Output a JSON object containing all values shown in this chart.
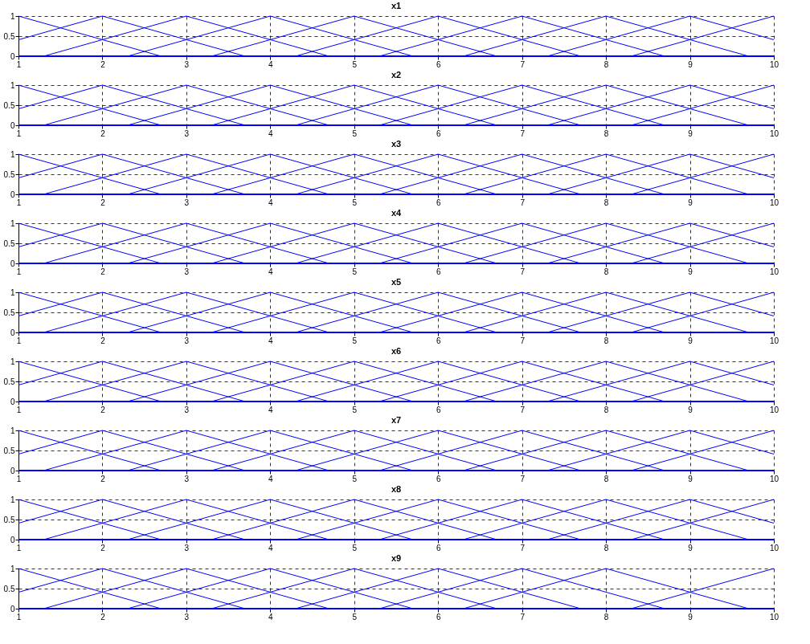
{
  "chart_data": [
    {
      "type": "line",
      "title": "x1",
      "xlim": [
        1,
        10
      ],
      "ylim": [
        0,
        1
      ],
      "xticks": [
        1,
        2,
        3,
        4,
        5,
        6,
        7,
        8,
        9,
        10
      ],
      "yticks": [
        0,
        0.5,
        1
      ],
      "grid": true,
      "legend": false,
      "series": [
        {
          "color": "#0000ff",
          "x": [
            1,
            2.7,
            10
          ],
          "values": [
            1,
            0,
            0
          ]
        },
        {
          "color": "#0000ff",
          "x": [
            1,
            2,
            3.7,
            10
          ],
          "values": [
            0.41,
            1,
            0,
            0
          ]
        },
        {
          "color": "#0000ff",
          "x": [
            1,
            1.3,
            3,
            4.7,
            10
          ],
          "values": [
            0,
            0,
            1,
            0,
            0
          ]
        },
        {
          "color": "#0000ff",
          "x": [
            1,
            2.3,
            4,
            5.7,
            10
          ],
          "values": [
            0,
            0,
            1,
            0,
            0
          ]
        },
        {
          "color": "#0000ff",
          "x": [
            1,
            3.3,
            5,
            6.7,
            10
          ],
          "values": [
            0,
            0,
            1,
            0,
            0
          ]
        },
        {
          "color": "#0000ff",
          "x": [
            1,
            4.3,
            6,
            7.7,
            10
          ],
          "values": [
            0,
            0,
            1,
            0,
            0
          ]
        },
        {
          "color": "#0000ff",
          "x": [
            1,
            5.3,
            7,
            8.7,
            10
          ],
          "values": [
            0,
            0,
            1,
            0,
            0
          ]
        },
        {
          "color": "#0000ff",
          "x": [
            1,
            6.3,
            8,
            9.7,
            10
          ],
          "values": [
            0,
            0,
            1,
            0,
            0
          ]
        },
        {
          "color": "#0000ff",
          "x": [
            1,
            7.3,
            9,
            10
          ],
          "values": [
            0,
            0,
            1,
            0.41
          ]
        },
        {
          "color": "#0000ff",
          "x": [
            1,
            8.3,
            10
          ],
          "values": [
            0,
            0,
            1
          ]
        }
      ]
    },
    {
      "type": "line",
      "title": "x2",
      "xlim": [
        1,
        10
      ],
      "ylim": [
        0,
        1
      ],
      "xticks": [
        1,
        2,
        3,
        4,
        5,
        6,
        7,
        8,
        9,
        10
      ],
      "yticks": [
        0,
        0.5,
        1
      ],
      "grid": true,
      "legend": false,
      "series": [
        {
          "color": "#0000ff",
          "x": [
            1,
            2.7,
            10
          ],
          "values": [
            1,
            0,
            0
          ]
        },
        {
          "color": "#0000ff",
          "x": [
            1,
            2,
            3.7,
            10
          ],
          "values": [
            0.41,
            1,
            0,
            0
          ]
        },
        {
          "color": "#0000ff",
          "x": [
            1,
            1.3,
            3,
            4.7,
            10
          ],
          "values": [
            0,
            0,
            1,
            0,
            0
          ]
        },
        {
          "color": "#0000ff",
          "x": [
            1,
            2.3,
            4,
            5.7,
            10
          ],
          "values": [
            0,
            0,
            1,
            0,
            0
          ]
        },
        {
          "color": "#0000ff",
          "x": [
            1,
            3.3,
            5,
            6.7,
            10
          ],
          "values": [
            0,
            0,
            1,
            0,
            0
          ]
        },
        {
          "color": "#0000ff",
          "x": [
            1,
            4.3,
            6,
            7.7,
            10
          ],
          "values": [
            0,
            0,
            1,
            0,
            0
          ]
        },
        {
          "color": "#0000ff",
          "x": [
            1,
            5.3,
            7,
            8.7,
            10
          ],
          "values": [
            0,
            0,
            1,
            0,
            0
          ]
        },
        {
          "color": "#0000ff",
          "x": [
            1,
            6.3,
            8,
            9.7,
            10
          ],
          "values": [
            0,
            0,
            1,
            0,
            0
          ]
        },
        {
          "color": "#0000ff",
          "x": [
            1,
            7.3,
            9,
            10
          ],
          "values": [
            0,
            0,
            1,
            0.41
          ]
        },
        {
          "color": "#0000ff",
          "x": [
            1,
            8.3,
            10
          ],
          "values": [
            0,
            0,
            1
          ]
        }
      ]
    },
    {
      "type": "line",
      "title": "x3",
      "xlim": [
        1,
        10
      ],
      "ylim": [
        0,
        1
      ],
      "xticks": [
        1,
        2,
        3,
        4,
        5,
        6,
        7,
        8,
        9,
        10
      ],
      "yticks": [
        0,
        0.5,
        1
      ],
      "grid": true,
      "legend": false,
      "series": [
        {
          "color": "#0000ff",
          "x": [
            1,
            2.7,
            10
          ],
          "values": [
            1,
            0,
            0
          ]
        },
        {
          "color": "#0000ff",
          "x": [
            1,
            2,
            3.7,
            10
          ],
          "values": [
            0.41,
            1,
            0,
            0
          ]
        },
        {
          "color": "#0000ff",
          "x": [
            1,
            1.3,
            3,
            4.7,
            10
          ],
          "values": [
            0,
            0,
            1,
            0,
            0
          ]
        },
        {
          "color": "#0000ff",
          "x": [
            1,
            2.3,
            4,
            5.7,
            10
          ],
          "values": [
            0,
            0,
            1,
            0,
            0
          ]
        },
        {
          "color": "#0000ff",
          "x": [
            1,
            3.3,
            5,
            6.7,
            10
          ],
          "values": [
            0,
            0,
            1,
            0,
            0
          ]
        },
        {
          "color": "#0000ff",
          "x": [
            1,
            4.3,
            6,
            7.7,
            10
          ],
          "values": [
            0,
            0,
            1,
            0,
            0
          ]
        },
        {
          "color": "#0000ff",
          "x": [
            1,
            5.3,
            7,
            8.7,
            10
          ],
          "values": [
            0,
            0,
            1,
            0,
            0
          ]
        },
        {
          "color": "#0000ff",
          "x": [
            1,
            6.3,
            8,
            9.7,
            10
          ],
          "values": [
            0,
            0,
            1,
            0,
            0
          ]
        },
        {
          "color": "#0000ff",
          "x": [
            1,
            7.3,
            9,
            10
          ],
          "values": [
            0,
            0,
            1,
            0.41
          ]
        },
        {
          "color": "#0000ff",
          "x": [
            1,
            8.3,
            10
          ],
          "values": [
            0,
            0,
            1
          ]
        }
      ]
    },
    {
      "type": "line",
      "title": "x4",
      "xlim": [
        1,
        10
      ],
      "ylim": [
        0,
        1
      ],
      "xticks": [
        1,
        2,
        3,
        4,
        5,
        6,
        7,
        8,
        9,
        10
      ],
      "yticks": [
        0,
        0.5,
        1
      ],
      "grid": true,
      "legend": false,
      "series": [
        {
          "color": "#0000ff",
          "x": [
            1,
            2.7,
            10
          ],
          "values": [
            1,
            0,
            0
          ]
        },
        {
          "color": "#0000ff",
          "x": [
            1,
            2,
            3.7,
            10
          ],
          "values": [
            0.41,
            1,
            0,
            0
          ]
        },
        {
          "color": "#0000ff",
          "x": [
            1,
            1.3,
            3,
            4.7,
            10
          ],
          "values": [
            0,
            0,
            1,
            0,
            0
          ]
        },
        {
          "color": "#0000ff",
          "x": [
            1,
            2.3,
            4,
            5.7,
            10
          ],
          "values": [
            0,
            0,
            1,
            0,
            0
          ]
        },
        {
          "color": "#0000ff",
          "x": [
            1,
            3.3,
            5,
            6.7,
            10
          ],
          "values": [
            0,
            0,
            1,
            0,
            0
          ]
        },
        {
          "color": "#0000ff",
          "x": [
            1,
            4.3,
            6,
            7.7,
            10
          ],
          "values": [
            0,
            0,
            1,
            0,
            0
          ]
        },
        {
          "color": "#0000ff",
          "x": [
            1,
            5.3,
            7,
            8.7,
            10
          ],
          "values": [
            0,
            0,
            1,
            0,
            0
          ]
        },
        {
          "color": "#0000ff",
          "x": [
            1,
            6.3,
            8,
            9.7,
            10
          ],
          "values": [
            0,
            0,
            1,
            0,
            0
          ]
        },
        {
          "color": "#0000ff",
          "x": [
            1,
            7.3,
            9,
            10
          ],
          "values": [
            0,
            0,
            1,
            0.41
          ]
        },
        {
          "color": "#0000ff",
          "x": [
            1,
            8.3,
            10
          ],
          "values": [
            0,
            0,
            1
          ]
        }
      ]
    },
    {
      "type": "line",
      "title": "x5",
      "xlim": [
        1,
        10
      ],
      "ylim": [
        0,
        1
      ],
      "xticks": [
        1,
        2,
        3,
        4,
        5,
        6,
        7,
        8,
        9,
        10
      ],
      "yticks": [
        0,
        0.5,
        1
      ],
      "grid": true,
      "legend": false,
      "series": [
        {
          "color": "#0000ff",
          "x": [
            1,
            2.7,
            10
          ],
          "values": [
            1,
            0,
            0
          ]
        },
        {
          "color": "#0000ff",
          "x": [
            1,
            2,
            3.7,
            10
          ],
          "values": [
            0.41,
            1,
            0,
            0
          ]
        },
        {
          "color": "#0000ff",
          "x": [
            1,
            1.3,
            3,
            4.7,
            10
          ],
          "values": [
            0,
            0,
            1,
            0,
            0
          ]
        },
        {
          "color": "#0000ff",
          "x": [
            1,
            2.3,
            4,
            5.7,
            10
          ],
          "values": [
            0,
            0,
            1,
            0,
            0
          ]
        },
        {
          "color": "#0000ff",
          "x": [
            1,
            3.3,
            5,
            6.7,
            10
          ],
          "values": [
            0,
            0,
            1,
            0,
            0
          ]
        },
        {
          "color": "#0000ff",
          "x": [
            1,
            4.3,
            6,
            7.7,
            10
          ],
          "values": [
            0,
            0,
            1,
            0,
            0
          ]
        },
        {
          "color": "#0000ff",
          "x": [
            1,
            5.3,
            7,
            8.7,
            10
          ],
          "values": [
            0,
            0,
            1,
            0,
            0
          ]
        },
        {
          "color": "#0000ff",
          "x": [
            1,
            6.3,
            8,
            9.7,
            10
          ],
          "values": [
            0,
            0,
            1,
            0,
            0
          ]
        },
        {
          "color": "#0000ff",
          "x": [
            1,
            7.3,
            9,
            10
          ],
          "values": [
            0,
            0,
            1,
            0.41
          ]
        },
        {
          "color": "#0000ff",
          "x": [
            1,
            8.3,
            10
          ],
          "values": [
            0,
            0,
            1
          ]
        }
      ]
    },
    {
      "type": "line",
      "title": "x6",
      "xlim": [
        1,
        10
      ],
      "ylim": [
        0,
        1
      ],
      "xticks": [
        1,
        2,
        3,
        4,
        5,
        6,
        7,
        8,
        9,
        10
      ],
      "yticks": [
        0,
        0.5,
        1
      ],
      "grid": true,
      "legend": false,
      "series": [
        {
          "color": "#0000ff",
          "x": [
            1,
            2.7,
            10
          ],
          "values": [
            1,
            0,
            0
          ]
        },
        {
          "color": "#0000ff",
          "x": [
            1,
            2,
            3.7,
            10
          ],
          "values": [
            0.41,
            1,
            0,
            0
          ]
        },
        {
          "color": "#0000ff",
          "x": [
            1,
            1.3,
            3,
            4.7,
            10
          ],
          "values": [
            0,
            0,
            1,
            0,
            0
          ]
        },
        {
          "color": "#0000ff",
          "x": [
            1,
            2.3,
            4,
            5.7,
            10
          ],
          "values": [
            0,
            0,
            1,
            0,
            0
          ]
        },
        {
          "color": "#0000ff",
          "x": [
            1,
            3.3,
            5,
            6.7,
            10
          ],
          "values": [
            0,
            0,
            1,
            0,
            0
          ]
        },
        {
          "color": "#0000ff",
          "x": [
            1,
            4.3,
            6,
            7.7,
            10
          ],
          "values": [
            0,
            0,
            1,
            0,
            0
          ]
        },
        {
          "color": "#0000ff",
          "x": [
            1,
            5.3,
            7,
            8.7,
            10
          ],
          "values": [
            0,
            0,
            1,
            0,
            0
          ]
        },
        {
          "color": "#0000ff",
          "x": [
            1,
            6.3,
            8,
            9.7,
            10
          ],
          "values": [
            0,
            0,
            1,
            0,
            0
          ]
        },
        {
          "color": "#0000ff",
          "x": [
            1,
            7.3,
            9,
            10
          ],
          "values": [
            0,
            0,
            1,
            0.41
          ]
        },
        {
          "color": "#0000ff",
          "x": [
            1,
            8.3,
            10
          ],
          "values": [
            0,
            0,
            1
          ]
        }
      ]
    },
    {
      "type": "line",
      "title": "x7",
      "xlim": [
        1,
        10
      ],
      "ylim": [
        0,
        1
      ],
      "xticks": [
        1,
        2,
        3,
        4,
        5,
        6,
        7,
        8,
        9,
        10
      ],
      "yticks": [
        0,
        0.5,
        1
      ],
      "grid": true,
      "legend": false,
      "series": [
        {
          "color": "#0000ff",
          "x": [
            1,
            2.7,
            10
          ],
          "values": [
            1,
            0,
            0
          ]
        },
        {
          "color": "#0000ff",
          "x": [
            1,
            2,
            3.7,
            10
          ],
          "values": [
            0.41,
            1,
            0,
            0
          ]
        },
        {
          "color": "#0000ff",
          "x": [
            1,
            1.3,
            3,
            4.7,
            10
          ],
          "values": [
            0,
            0,
            1,
            0,
            0
          ]
        },
        {
          "color": "#0000ff",
          "x": [
            1,
            2.3,
            4,
            5.7,
            10
          ],
          "values": [
            0,
            0,
            1,
            0,
            0
          ]
        },
        {
          "color": "#0000ff",
          "x": [
            1,
            3.3,
            5,
            6.7,
            10
          ],
          "values": [
            0,
            0,
            1,
            0,
            0
          ]
        },
        {
          "color": "#0000ff",
          "x": [
            1,
            4.3,
            6,
            7.7,
            10
          ],
          "values": [
            0,
            0,
            1,
            0,
            0
          ]
        },
        {
          "color": "#0000ff",
          "x": [
            1,
            5.3,
            7,
            8.7,
            10
          ],
          "values": [
            0,
            0,
            1,
            0,
            0
          ]
        },
        {
          "color": "#0000ff",
          "x": [
            1,
            6.3,
            8,
            9.7,
            10
          ],
          "values": [
            0,
            0,
            1,
            0,
            0
          ]
        },
        {
          "color": "#0000ff",
          "x": [
            1,
            7.3,
            9,
            10
          ],
          "values": [
            0,
            0,
            1,
            0.41
          ]
        },
        {
          "color": "#0000ff",
          "x": [
            1,
            8.3,
            10
          ],
          "values": [
            0,
            0,
            1
          ]
        }
      ]
    },
    {
      "type": "line",
      "title": "x8",
      "xlim": [
        1,
        10
      ],
      "ylim": [
        0,
        1
      ],
      "xticks": [
        1,
        2,
        3,
        4,
        5,
        6,
        7,
        8,
        9,
        10
      ],
      "yticks": [
        0,
        0.5,
        1
      ],
      "grid": true,
      "legend": false,
      "series": [
        {
          "color": "#0000ff",
          "x": [
            1,
            2.7,
            10
          ],
          "values": [
            1,
            0,
            0
          ]
        },
        {
          "color": "#0000ff",
          "x": [
            1,
            2,
            3.7,
            10
          ],
          "values": [
            0.41,
            1,
            0,
            0
          ]
        },
        {
          "color": "#0000ff",
          "x": [
            1,
            1.3,
            3,
            4.7,
            10
          ],
          "values": [
            0,
            0,
            1,
            0,
            0
          ]
        },
        {
          "color": "#0000ff",
          "x": [
            1,
            2.3,
            4,
            5.7,
            10
          ],
          "values": [
            0,
            0,
            1,
            0,
            0
          ]
        },
        {
          "color": "#0000ff",
          "x": [
            1,
            3.3,
            5,
            6.7,
            10
          ],
          "values": [
            0,
            0,
            1,
            0,
            0
          ]
        },
        {
          "color": "#0000ff",
          "x": [
            1,
            4.3,
            6,
            7.7,
            10
          ],
          "values": [
            0,
            0,
            1,
            0,
            0
          ]
        },
        {
          "color": "#0000ff",
          "x": [
            1,
            5.3,
            7,
            8.7,
            10
          ],
          "values": [
            0,
            0,
            1,
            0,
            0
          ]
        },
        {
          "color": "#0000ff",
          "x": [
            1,
            6.3,
            8,
            9.7,
            10
          ],
          "values": [
            0,
            0,
            1,
            0,
            0
          ]
        },
        {
          "color": "#0000ff",
          "x": [
            1,
            7.3,
            9,
            10
          ],
          "values": [
            0,
            0,
            1,
            0.41
          ]
        },
        {
          "color": "#0000ff",
          "x": [
            1,
            8.3,
            10
          ],
          "values": [
            0,
            0,
            1
          ]
        }
      ]
    },
    {
      "type": "line",
      "title": "x9",
      "xlim": [
        1,
        10
      ],
      "ylim": [
        0,
        1
      ],
      "xticks": [
        1,
        2,
        3,
        4,
        5,
        6,
        7,
        8,
        9,
        10
      ],
      "yticks": [
        0,
        0.5,
        1
      ],
      "grid": true,
      "legend": false,
      "series": [
        {
          "color": "#0000ff",
          "x": [
            1,
            2.7,
            10
          ],
          "values": [
            1,
            0,
            0
          ]
        },
        {
          "color": "#0000ff",
          "x": [
            1,
            2,
            3.7,
            10
          ],
          "values": [
            0.41,
            1,
            0,
            0
          ]
        },
        {
          "color": "#0000ff",
          "x": [
            1,
            1.3,
            3,
            4.7,
            10
          ],
          "values": [
            0,
            0,
            1,
            0,
            0
          ]
        },
        {
          "color": "#0000ff",
          "x": [
            1,
            2.3,
            4,
            5.7,
            10
          ],
          "values": [
            0,
            0,
            1,
            0,
            0
          ]
        },
        {
          "color": "#0000ff",
          "x": [
            1,
            3.3,
            5,
            6.7,
            10
          ],
          "values": [
            0,
            0,
            1,
            0,
            0
          ]
        },
        {
          "color": "#0000ff",
          "x": [
            1,
            4.3,
            6,
            7.7,
            10
          ],
          "values": [
            0,
            0,
            1,
            0,
            0
          ]
        },
        {
          "color": "#0000ff",
          "x": [
            1,
            5.3,
            7,
            8.7,
            10
          ],
          "values": [
            0,
            0,
            1,
            0,
            0
          ]
        },
        {
          "color": "#0000ff",
          "x": [
            1,
            6.3,
            8,
            9.7,
            10
          ],
          "values": [
            0,
            0,
            1,
            0,
            0
          ]
        },
        {
          "color": "#0000ff",
          "x": [
            1,
            8.3,
            10
          ],
          "values": [
            0,
            0,
            1
          ]
        }
      ]
    }
  ]
}
